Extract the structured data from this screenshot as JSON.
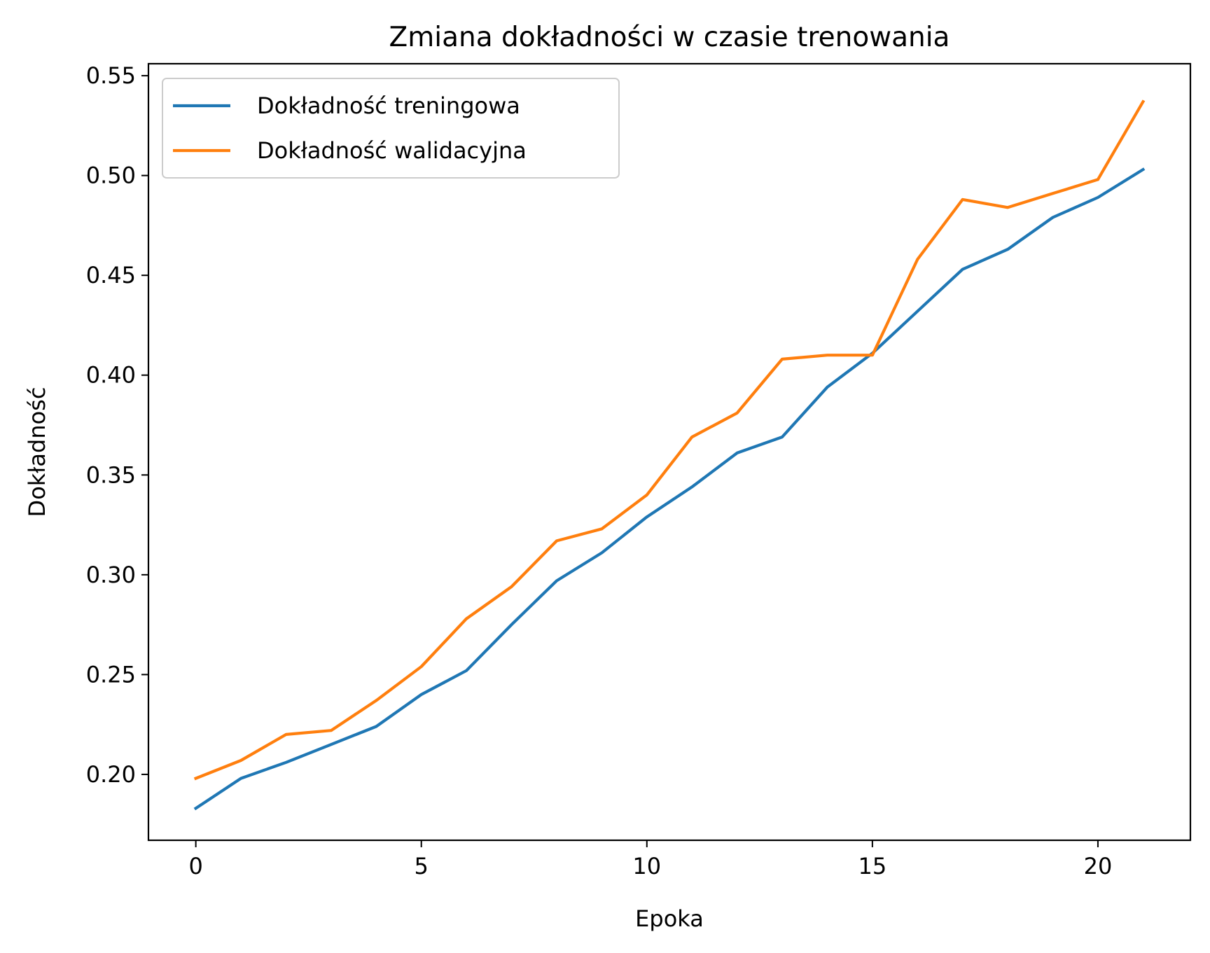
{
  "chart_data": {
    "type": "line",
    "title": "Zmiana dokładności w czasie trenowania",
    "xlabel": "Epoka",
    "ylabel": "Dokładność",
    "xlim": [
      -1.05,
      22.05
    ],
    "ylim": [
      0.167,
      0.556
    ],
    "xticks": [
      0,
      5,
      10,
      15,
      20
    ],
    "xtick_labels": [
      "0",
      "5",
      "10",
      "15",
      "20"
    ],
    "yticks": [
      0.2,
      0.25,
      0.3,
      0.35,
      0.4,
      0.45,
      0.5,
      0.55
    ],
    "ytick_labels": [
      "0.20",
      "0.25",
      "0.30",
      "0.35",
      "0.40",
      "0.45",
      "0.50",
      "0.55"
    ],
    "grid": false,
    "legend_position": "upper-left",
    "x": [
      0,
      1,
      2,
      3,
      4,
      5,
      6,
      7,
      8,
      9,
      10,
      11,
      12,
      13,
      14,
      15,
      16,
      17,
      18,
      19,
      20,
      21
    ],
    "series": [
      {
        "name": "Dokładność treningowa",
        "color": "#1f77b4",
        "values": [
          0.183,
          0.198,
          0.206,
          0.215,
          0.224,
          0.24,
          0.252,
          0.275,
          0.297,
          0.311,
          0.329,
          0.344,
          0.361,
          0.369,
          0.394,
          0.411,
          0.432,
          0.453,
          0.463,
          0.479,
          0.489,
          0.503
        ]
      },
      {
        "name": "Dokładność walidacyjna",
        "color": "#ff7f0e",
        "values": [
          0.198,
          0.207,
          0.22,
          0.222,
          0.237,
          0.254,
          0.278,
          0.294,
          0.317,
          0.323,
          0.34,
          0.369,
          0.381,
          0.408,
          0.41,
          0.41,
          0.458,
          0.488,
          0.484,
          0.491,
          0.498,
          0.537
        ]
      }
    ]
  }
}
